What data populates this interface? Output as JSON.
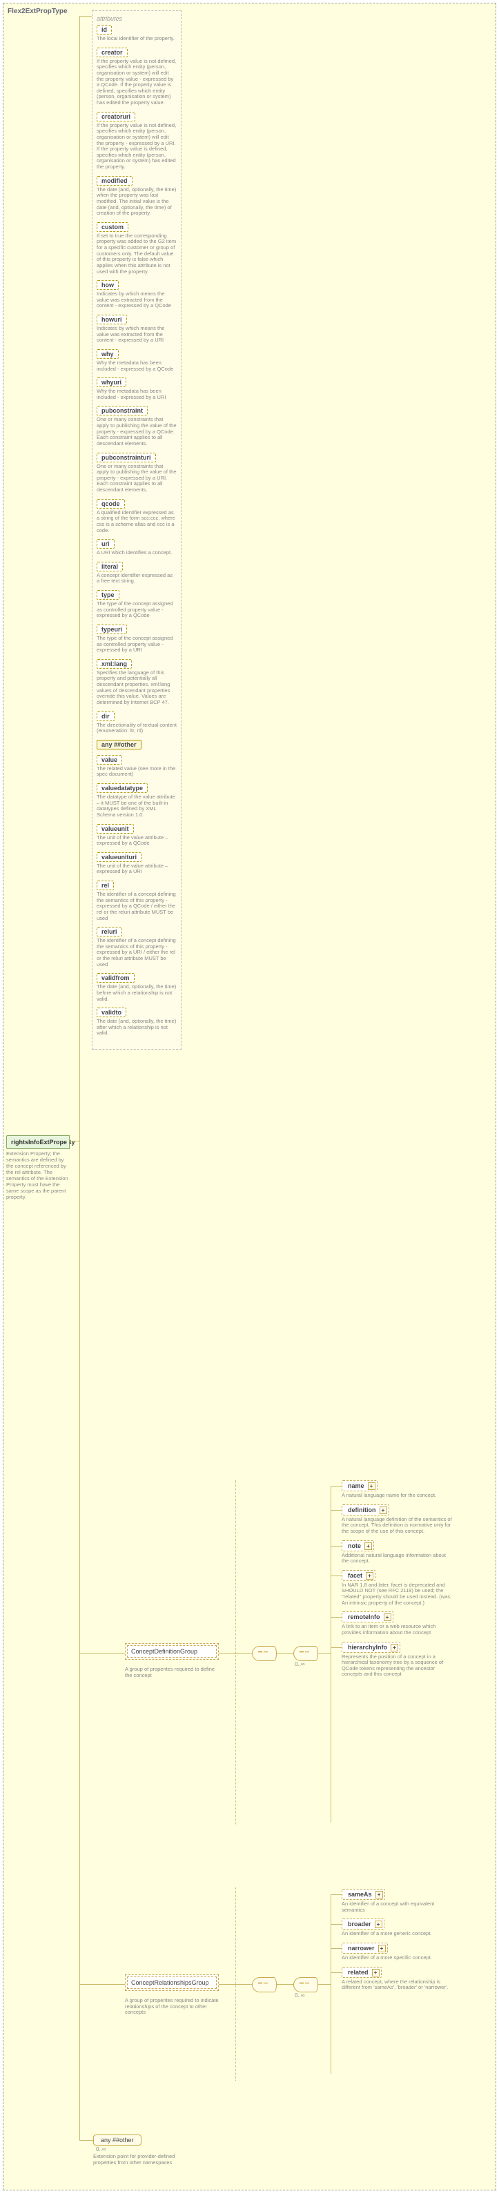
{
  "outer_title": "Flex2ExtPropType",
  "root": {
    "name": "rightsInfoExtProperty",
    "desc": "Extension Property; the semantics are defined by the concept referenced by the rel attribute. The semantics of the Extension Property must have the same scope as the parent property."
  },
  "attr_panel_title": "attributes",
  "attributes": [
    {
      "name": "id",
      "desc": "The local identifier of the property."
    },
    {
      "name": "creator",
      "desc": "If the property value is not defined, specifies which entity (person, organisation or system) will edit the property value - expressed by a QCode. If the property value is defined, specifies which entity (person, organisation or system) has edited the property value."
    },
    {
      "name": "creatoruri",
      "desc": "If the property value is not defined, specifies which entity (person, organisation or system) will edit the property - expressed by a URI. If the property value is defined, specifies which entity (person, organisation or system) has edited the property."
    },
    {
      "name": "modified",
      "desc": "The date (and, optionally, the time) when the property was last modified. The initial value is the date (and, optionally, the time) of creation of the property."
    },
    {
      "name": "custom",
      "desc": "If set to true the corresponding property was added to the G2 item for a specific customer or group of customers only. The default value of this property is false which applies when this attribute is not used with the property."
    },
    {
      "name": "how",
      "desc": "Indicates by which means the value was extracted from the content - expressed by a QCode"
    },
    {
      "name": "howuri",
      "desc": "Indicates by which means the value was extracted from the content - expressed by a URI"
    },
    {
      "name": "why",
      "desc": "Why the metadata has been included - expressed by a QCode"
    },
    {
      "name": "whyuri",
      "desc": "Why the metadata has been included - expressed by a URI"
    },
    {
      "name": "pubconstraint",
      "desc": "One or many constraints that apply to publishing the value of the property - expressed by a QCode. Each constraint applies to all descendant elements."
    },
    {
      "name": "pubconstrainturi",
      "desc": "One or many constraints that apply to publishing the value of the property - expressed by a URI. Each constraint applies to all descendant elements."
    },
    {
      "name": "qcode",
      "desc": "A qualified identifier expressed as a string of the form scc:ccc, where css is a scheme alias and ccc is a code."
    },
    {
      "name": "uri",
      "desc": "A URI which identifies a concept."
    },
    {
      "name": "literal",
      "desc": "A concept identifier expressed as a free text string."
    },
    {
      "name": "type",
      "desc": "The type of the concept assigned as controlled property value - expressed by a QCode"
    },
    {
      "name": "typeuri",
      "desc": "The type of the concept assigned as controlled property value - expressed by a URI"
    },
    {
      "name": "xml:lang",
      "desc": "Specifies the language of this property and potentially all descendant properties. xml:lang values of descendant properties override this value. Values are determined by Internet BCP 47."
    },
    {
      "name": "dir",
      "desc": "The directionality of textual content (enumeration: ltr, rtl)"
    },
    {
      "name": "any ##other",
      "wildcard": true,
      "desc": ""
    },
    {
      "name": "value",
      "desc": "The related value (see more in the spec document)"
    },
    {
      "name": "valuedatatype",
      "desc": "The datatype of the value attribute – it MUST be one of the built-in datatypes defined by XML Schema version 1.0."
    },
    {
      "name": "valueunit",
      "desc": "The unit of the value attribute – expressed by a QCode"
    },
    {
      "name": "valueunituri",
      "desc": "The unit of the value attribute – expressed by a URI"
    },
    {
      "name": "rel",
      "desc": "The identifier of a concept defining the semantics of this property - expressed by a QCode / either the rel or the reluri attribute MUST be used"
    },
    {
      "name": "reluri",
      "desc": "The identifier of a concept defining the semantics of this property - expressed by a URI / either the rel or the reluri attribute MUST be used"
    },
    {
      "name": "validfrom",
      "desc": "The date (and, optionally, the time) before which a relationship is not valid."
    },
    {
      "name": "validto",
      "desc": "The date (and, optionally, the time) after which a relationship is not valid."
    }
  ],
  "concept_def_group": {
    "title": "ConceptDefinitionGroup",
    "desc": "A group of properites required to define the concept"
  },
  "concept_rel_group": {
    "title": "ConceptRelationshipsGroup",
    "desc": "A group of properites required to indicate relationships of the concept to other concepts"
  },
  "concept_def_children": [
    {
      "name": "name",
      "dashed": true,
      "plus": true,
      "desc": "A natural language name for the concept."
    },
    {
      "name": "definition",
      "dashed": true,
      "plus": true,
      "desc": "A natural language definition of the semantics of the concept. This definition is normative only for the scope of the use of this concept."
    },
    {
      "name": "note",
      "dashed": true,
      "plus": true,
      "desc": "Additional natural language information about the concept."
    },
    {
      "name": "facet",
      "dashed": true,
      "plus": true,
      "desc": "In NAR 1.8 and later, facet is deprecated and SHOULD NOT (see RFC 2119) be used; the \"related\" property should be used instead. (was: An intrinsic property of the concept.)"
    },
    {
      "name": "remoteInfo",
      "dashed": true,
      "plus": true,
      "desc": "A link to an item or a web resource which provides information about the concept"
    },
    {
      "name": "hierarchyInfo",
      "dashed": true,
      "plus": true,
      "desc": "Represents the position of a concept in a hierarchical taxonomy tree by a sequence of QCode tokens representing the ancestor concepts and this concept"
    }
  ],
  "concept_rel_children": [
    {
      "name": "sameAs",
      "dashed": true,
      "plus": true,
      "desc": "An identifier of a concept with equivalent semantics"
    },
    {
      "name": "broader",
      "dashed": true,
      "plus": true,
      "desc": "An identifier of a more generic concept."
    },
    {
      "name": "narrower",
      "dashed": true,
      "plus": true,
      "desc": "An identifier of a more specific concept."
    },
    {
      "name": "related",
      "dashed": true,
      "plus": true,
      "desc": "A related concept, where the relationship is different from 'sameAs', 'broader' or 'narrower'."
    }
  ],
  "any_other": {
    "label": "any ##other",
    "card": "0..∞",
    "desc": "Extension point for provider-defined properties from other namespaces"
  },
  "seq_card": "0..∞",
  "colors": {
    "bg": "#ffffdf",
    "line": "#c9b96a",
    "attr_border": "#b39b00",
    "elem_border": "#c9a94a",
    "root_bg": "#e8f5dd",
    "root_border": "#8a6"
  }
}
